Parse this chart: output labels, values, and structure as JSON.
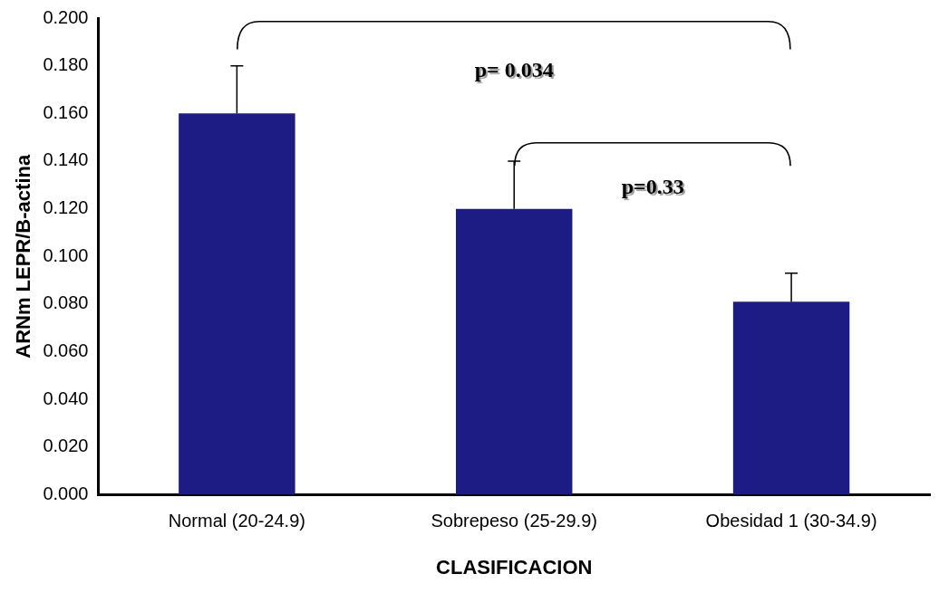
{
  "chart_data": {
    "type": "bar",
    "xlabel": "CLASIFICACION",
    "ylabel": "ARNm LEPR/B-actina",
    "categories": [
      "Normal (20-24.9)",
      "Sobrepeso (25-29.9)",
      "Obesidad 1 (30-34.9)"
    ],
    "values": [
      0.16,
      0.12,
      0.081
    ],
    "errors": [
      [
        0.16,
        0.18
      ],
      [
        0.12,
        0.14
      ],
      [
        0.081,
        0.093
      ]
    ],
    "color": "#1c1c84",
    "ylim": [
      0,
      0.2
    ],
    "yticks": [
      {
        "value": 0,
        "label": "0.000"
      },
      {
        "value": 0.02,
        "label": "0.020"
      },
      {
        "value": 0.04,
        "label": "0.040"
      },
      {
        "value": 0.06,
        "label": "0.060"
      },
      {
        "value": 0.08,
        "label": "0.080"
      },
      {
        "value": 0.1,
        "label": "0.100"
      },
      {
        "value": 0.12,
        "label": "0.120"
      },
      {
        "value": 0.14,
        "label": "0.140"
      },
      {
        "value": 0.16,
        "label": "0.160"
      },
      {
        "value": 0.18,
        "label": "0.180"
      },
      {
        "value": 0.2,
        "label": "0.200"
      }
    ],
    "annotations": [
      "p= 0.034",
      "p=0.33"
    ],
    "grid": false,
    "legend": false
  }
}
